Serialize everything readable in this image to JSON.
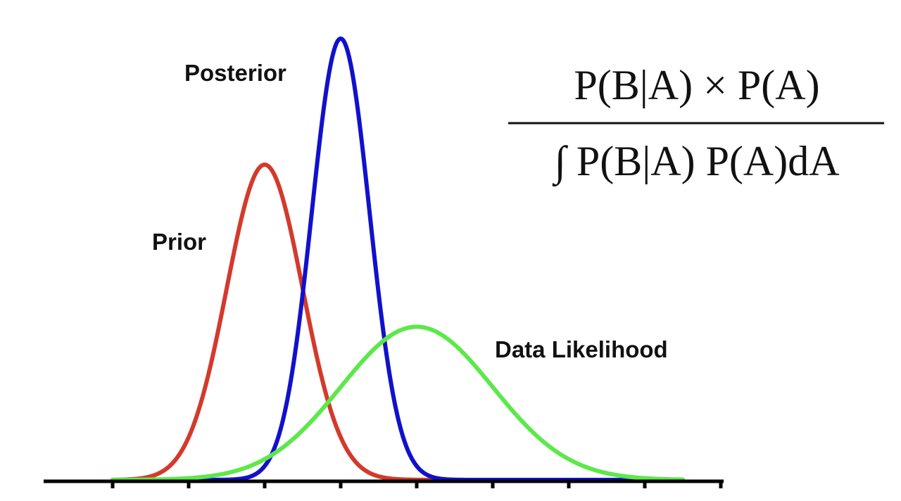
{
  "chart_data": {
    "type": "line",
    "title": "",
    "xlabel": "",
    "ylabel": "",
    "grid": false,
    "xlim": [
      0,
      8.2
    ],
    "ylim": [
      0,
      1.0
    ],
    "x_ticks": [
      1,
      2,
      3,
      4,
      5,
      6,
      7,
      8,
      9
    ],
    "series": [
      {
        "name": "Prior",
        "color": "#d33a2c",
        "mean": 3.0,
        "sd": 0.5,
        "peak": 0.7
      },
      {
        "name": "Posterior",
        "color": "#1111cc",
        "mean": 4.0,
        "sd": 0.38,
        "peak": 0.98
      },
      {
        "name": "Data Likelihood",
        "color": "#5de84a",
        "mean": 5.0,
        "sd": 1.0,
        "peak": 0.34
      }
    ]
  },
  "formula": {
    "numerator": "P(B|A) × P(A)",
    "denominator": "∫ P(B|A) P(A)dA"
  }
}
